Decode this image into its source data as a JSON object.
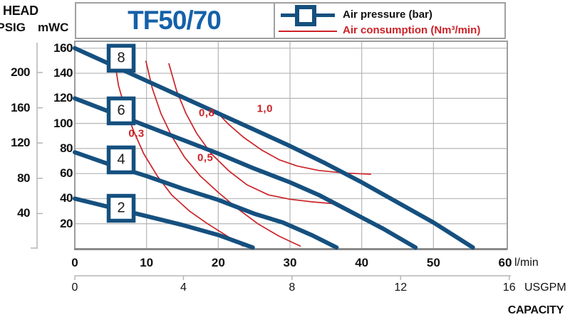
{
  "colors": {
    "curve_blue": "#15507f",
    "title_blue": "#1561a9",
    "curve_red": "#cc2328",
    "grid_gray": "#b5b5b5",
    "frame_gray": "#9e9e9e",
    "axis_gray": "#8a8a8a",
    "text_black": "#111111"
  },
  "header": {
    "title": "TF50/70"
  },
  "y_axis_labels": {
    "head": "HEAD",
    "psig": "PSIG",
    "mwc": "mWC"
  },
  "legend": {
    "air_pressure_label": "Air pressure (bar)",
    "air_consumption_label": "Air consumption (Nm³/min)"
  },
  "x_axis": {
    "lmin_ticks": [
      0,
      10,
      20,
      30,
      40,
      50,
      60
    ],
    "lmin_unit": "l/min",
    "usgpm_ticks": [
      0,
      4,
      8,
      12,
      16
    ],
    "usgpm_unit": "USGPM",
    "capacity_label": "CAPACITY",
    "lmin_per_usgpm": 3.7854
  },
  "y_axis": {
    "mwc_ticks": [
      20,
      40,
      60,
      80,
      100,
      120,
      140,
      160
    ],
    "psig_ticks": [
      40,
      80,
      120,
      160,
      200
    ],
    "mwc_per_psig": 0.70308
  },
  "chart_data": {
    "type": "line",
    "title": "TF50/70",
    "xlabel": "CAPACITY",
    "x_units": [
      "l/min",
      "USGPM"
    ],
    "ylabel": "HEAD",
    "y_units": [
      "mWC",
      "PSIG"
    ],
    "xlim_lmin": [
      0,
      60
    ],
    "ylim_mwc": [
      0,
      165
    ],
    "grid": true,
    "legend_position": "top-right",
    "series": [
      {
        "name": "Air pressure 8 bar",
        "label": "8",
        "pressure_bar": 8,
        "label_box_at": {
          "x": 6.46,
          "y": 152
        },
        "points": [
          [
            0,
            160
          ],
          [
            5,
            147
          ],
          [
            10,
            134
          ],
          [
            15,
            121
          ],
          [
            20,
            108
          ],
          [
            25,
            95
          ],
          [
            30,
            82
          ],
          [
            35,
            68
          ],
          [
            40,
            53
          ],
          [
            45,
            37
          ],
          [
            50,
            21
          ],
          [
            55.5,
            1
          ]
        ]
      },
      {
        "name": "Air pressure 6 bar",
        "label": "6",
        "pressure_bar": 6,
        "label_box_at": {
          "x": 6.46,
          "y": 110
        },
        "points": [
          [
            0,
            120
          ],
          [
            5,
            109
          ],
          [
            10,
            98
          ],
          [
            15,
            87
          ],
          [
            20,
            76
          ],
          [
            25,
            64
          ],
          [
            30,
            53
          ],
          [
            34,
            43
          ],
          [
            38,
            31
          ],
          [
            43,
            16
          ],
          [
            47.5,
            1
          ]
        ]
      },
      {
        "name": "Air pressure 4 bar",
        "label": "4",
        "pressure_bar": 4,
        "label_box_at": {
          "x": 6.46,
          "y": 70.9
        },
        "points": [
          [
            0,
            77
          ],
          [
            5,
            67
          ],
          [
            10,
            58
          ],
          [
            15,
            48
          ],
          [
            20,
            39
          ],
          [
            25,
            28
          ],
          [
            29,
            21
          ],
          [
            33,
            11
          ],
          [
            36.5,
            1
          ]
        ]
      },
      {
        "name": "Air pressure 2 bar",
        "label": "2",
        "pressure_bar": 2,
        "label_box_at": {
          "x": 6.46,
          "y": 32.3
        },
        "points": [
          [
            0,
            40
          ],
          [
            5,
            33
          ],
          [
            10,
            26
          ],
          [
            15,
            19
          ],
          [
            20,
            11
          ],
          [
            24.8,
            1
          ]
        ]
      }
    ],
    "consumption_series": [
      {
        "name": "Air consumption 0,3 Nm³/min",
        "label": "0,3",
        "nm3_min": 0.3,
        "label_at": {
          "x": 8.6,
          "y": 92
        },
        "points": [
          [
            5.6,
            148
          ],
          [
            6.1,
            130
          ],
          [
            7,
            112
          ],
          [
            8.2,
            94
          ],
          [
            9.6,
            76
          ],
          [
            11.5,
            58
          ],
          [
            13.5,
            43
          ],
          [
            16,
            30
          ],
          [
            18.5,
            20
          ],
          [
            21,
            11
          ],
          [
            23.5,
            2
          ]
        ]
      },
      {
        "name": "Air consumption 0,5 Nm³/min",
        "label": "0,5",
        "nm3_min": 0.5,
        "label_at": {
          "x": 18.2,
          "y": 72.5
        },
        "points": [
          [
            9.9,
            150
          ],
          [
            10.8,
            128
          ],
          [
            12,
            108
          ],
          [
            13.5,
            90
          ],
          [
            15.3,
            73
          ],
          [
            17.5,
            58
          ],
          [
            20,
            45
          ],
          [
            22.7,
            32
          ],
          [
            25.5,
            20
          ],
          [
            28.5,
            10
          ],
          [
            31.5,
            2
          ]
        ]
      },
      {
        "name": "Air consumption 0,8 Nm³/min",
        "label": "0,8",
        "nm3_min": 0.8,
        "label_at": {
          "x": 18.4,
          "y": 108.5
        },
        "points": [
          [
            13.1,
            148
          ],
          [
            14.2,
            126
          ],
          [
            15.5,
            108
          ],
          [
            17,
            92
          ],
          [
            19,
            76
          ],
          [
            21.5,
            62
          ],
          [
            24,
            51
          ],
          [
            27,
            43
          ],
          [
            30,
            39.5
          ],
          [
            33,
            37.5
          ],
          [
            36,
            36
          ]
        ]
      },
      {
        "name": "Air consumption 1,0 Nm³/min",
        "label": "1,0",
        "nm3_min": 1.0,
        "label_at": {
          "x": 26.5,
          "y": 111.5
        },
        "points": [
          [
            19.8,
            109
          ],
          [
            21.5,
            99
          ],
          [
            23.5,
            89
          ],
          [
            26,
            79
          ],
          [
            28.5,
            71
          ],
          [
            31,
            66
          ],
          [
            34,
            62.5
          ],
          [
            37.5,
            60.5
          ],
          [
            41.3,
            59.5
          ]
        ]
      }
    ]
  }
}
